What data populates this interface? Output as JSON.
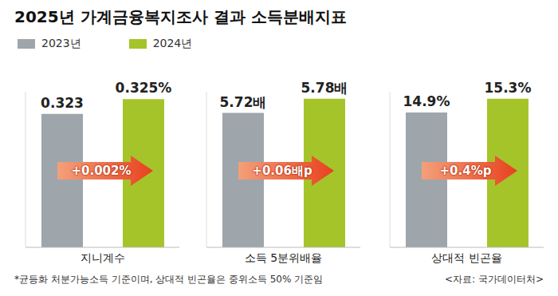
{
  "title": "2025년 가계금융복지조사 결과 소득분배지표",
  "note": "*균등화 처분가능소득 기준이며, 상대적 빈곤율은 중위소득 50% 기준임",
  "source": "<자료: 국가데이터처>",
  "chart_data": [
    {
      "type": "bar",
      "categories": [
        "지니계수"
      ],
      "series": [
        {
          "name": "2023년",
          "color": "#9ea6ab",
          "values": [
            0.323
          ],
          "value_labels": [
            "0.323"
          ]
        },
        {
          "name": "2024년",
          "color": "#a5c42a",
          "values": [
            0.325
          ],
          "value_labels": [
            "0.325%"
          ]
        }
      ],
      "ylim": [
        0.305,
        0.326
      ],
      "tick_labels": "x",
      "data_labels": true,
      "annotation": "+0.002%"
    },
    {
      "type": "bar",
      "categories": [
        "소득 5분위배율"
      ],
      "series": [
        {
          "name": "2023년",
          "color": "#9ea6ab",
          "values": [
            5.72
          ],
          "value_labels": [
            "5.72배"
          ]
        },
        {
          "name": "2024년",
          "color": "#a5c42a",
          "values": [
            5.78
          ],
          "value_labels": [
            "5.78배"
          ]
        }
      ],
      "ylim": [
        5.15,
        5.81
      ],
      "tick_labels": "x",
      "data_labels": true,
      "annotation": "+0.06배p"
    },
    {
      "type": "bar",
      "categories": [
        "상대적 빈곤율"
      ],
      "series": [
        {
          "name": "2023년",
          "color": "#9ea6ab",
          "values": [
            14.9
          ],
          "value_labels": [
            "14.9%"
          ]
        },
        {
          "name": "2024년",
          "color": "#a5c42a",
          "values": [
            15.3
          ],
          "value_labels": [
            "15.3%"
          ]
        }
      ],
      "ylim": [
        11,
        15.5
      ],
      "tick_labels": "x",
      "data_labels": true,
      "annotation": "+0.4%p"
    }
  ]
}
